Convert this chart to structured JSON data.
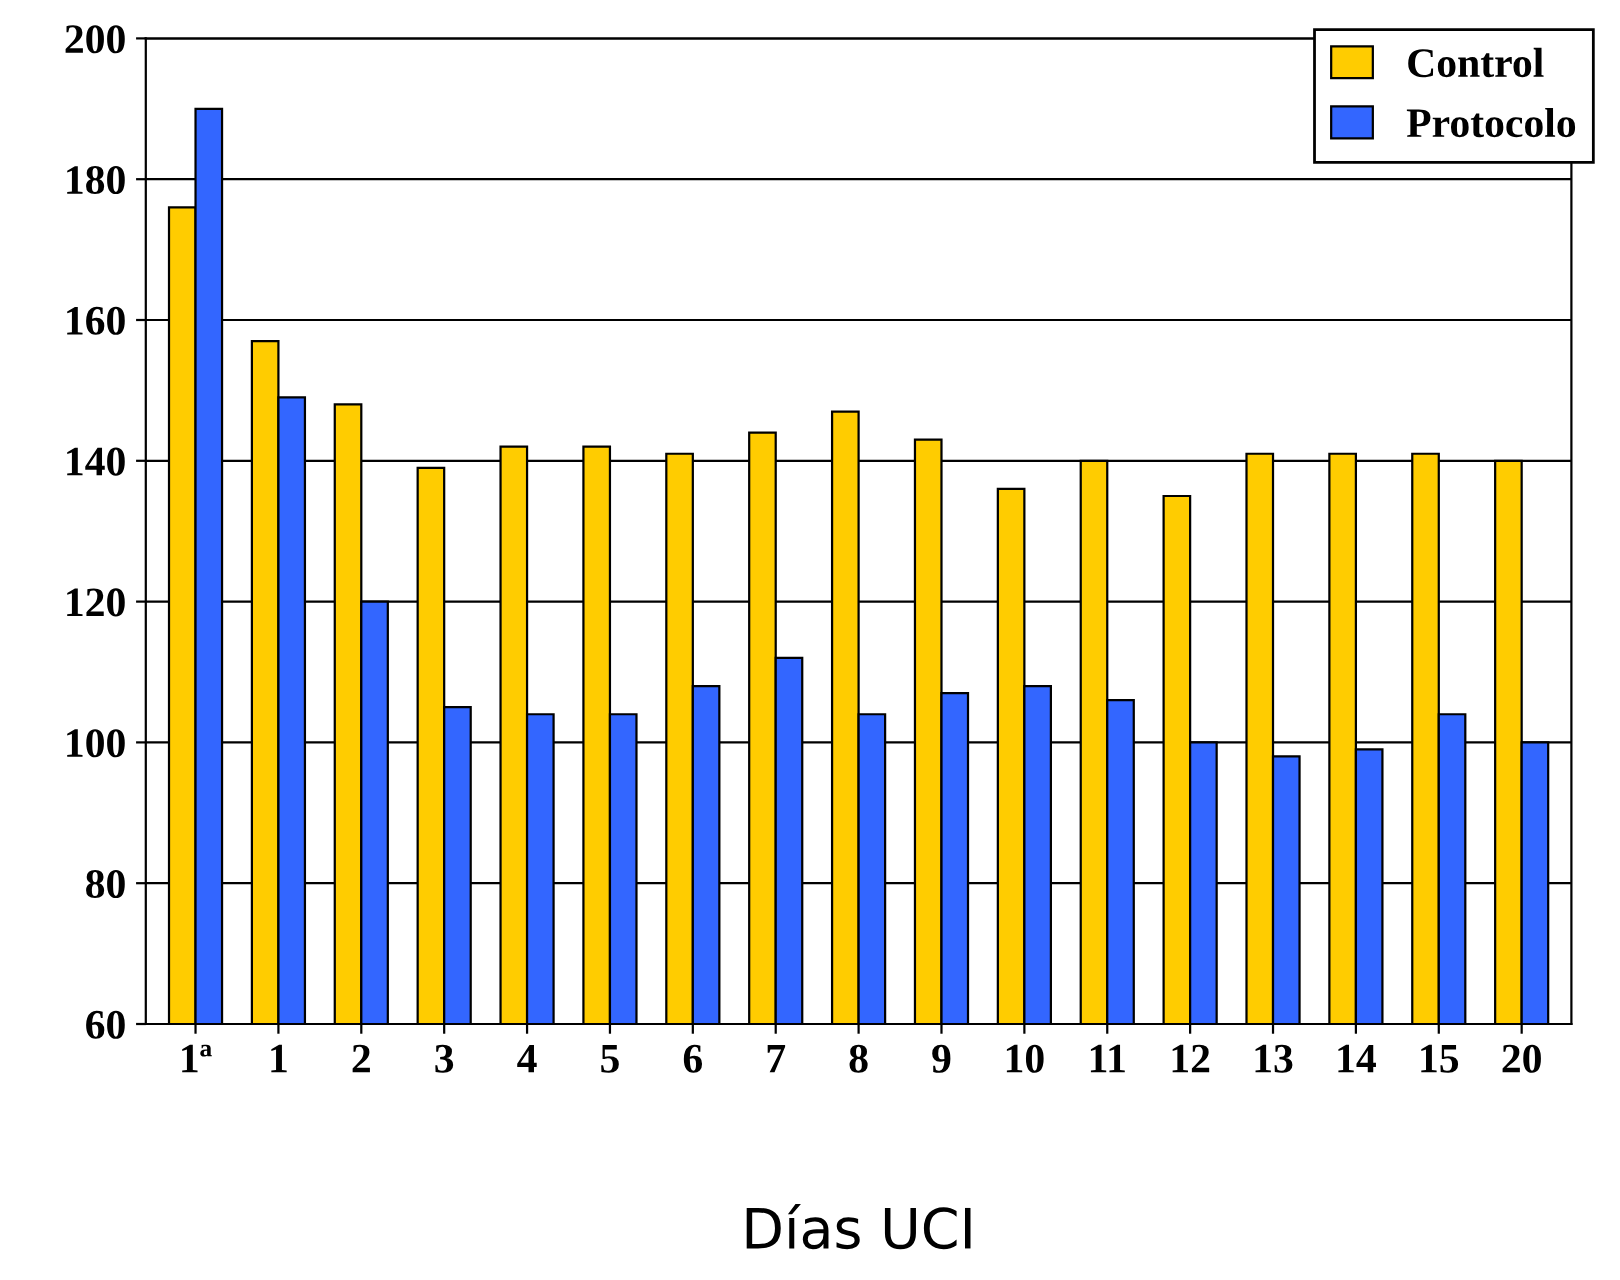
{
  "chart_data": {
    "type": "bar",
    "xlabel": "Días UCI",
    "categories": [
      "1ª",
      "1",
      "2",
      "3",
      "4",
      "5",
      "6",
      "7",
      "8",
      "9",
      "10",
      "11",
      "12",
      "13",
      "14",
      "15",
      "20"
    ],
    "series": [
      {
        "name": "Control",
        "color": "#ffcc00",
        "values": [
          176,
          157,
          148,
          139,
          142,
          142,
          141,
          144,
          147,
          143,
          136,
          140,
          135,
          141,
          141,
          141,
          140
        ]
      },
      {
        "name": "Protocolo",
        "color": "#3366ff",
        "values": [
          190,
          149,
          120,
          105,
          104,
          104,
          108,
          112,
          104,
          107,
          108,
          106,
          100,
          98,
          99,
          104,
          100
        ]
      }
    ],
    "ylim": [
      60,
      200
    ],
    "yticks": [
      60,
      80,
      100,
      120,
      140,
      160,
      180,
      200
    ],
    "grid": "y",
    "legend": "top right"
  }
}
